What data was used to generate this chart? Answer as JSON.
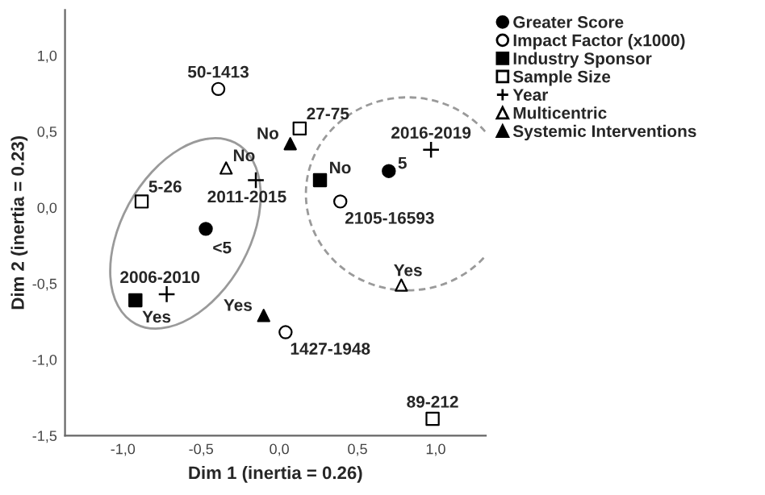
{
  "chart_data": {
    "type": "scatter",
    "xlabel": "Dim 1 (inertia = 0.26)",
    "ylabel": "Dim 2 (inertia = 0.23)",
    "xlim": [
      -1.37,
      1.32
    ],
    "ylim": [
      -1.5,
      1.3
    ],
    "xticks": [
      {
        "value": -1.0,
        "label": "-1,0"
      },
      {
        "value": -0.5,
        "label": "-0,5"
      },
      {
        "value": 0.0,
        "label": "0,0"
      },
      {
        "value": 0.5,
        "label": "0,5"
      },
      {
        "value": 1.0,
        "label": "1,0"
      }
    ],
    "yticks": [
      {
        "value": -1.5,
        "label": "-1,5"
      },
      {
        "value": -1.0,
        "label": "-1,0"
      },
      {
        "value": -0.5,
        "label": "-0,5"
      },
      {
        "value": 0.0,
        "label": "0,0"
      },
      {
        "value": 0.5,
        "label": "0,5"
      },
      {
        "value": 1.0,
        "label": "1,0"
      }
    ],
    "grid": false,
    "legend": "top right",
    "series": [
      {
        "name": "Greater Score",
        "marker": "circle",
        "color": "#000000",
        "x": [
          -0.47,
          0.7
        ],
        "values": [
          -0.14,
          0.24
        ]
      },
      {
        "name": "Impact Factor (x1000)",
        "marker": "circle",
        "color": "#ffffff",
        "x": [
          -0.39,
          0.39,
          0.04
        ],
        "values": [
          0.78,
          0.04,
          -0.82
        ]
      },
      {
        "name": "Industry Sponsor",
        "marker": "square",
        "color": "#000000",
        "x": [
          0.26,
          -0.92
        ],
        "values": [
          0.18,
          -0.61
        ]
      },
      {
        "name": "Sample Size",
        "marker": "square",
        "color": "#ffffff",
        "x": [
          -0.88,
          0.13,
          0.98
        ],
        "values": [
          0.04,
          0.52,
          -1.39
        ]
      },
      {
        "name": "Year",
        "marker": "cross",
        "color": "#000000",
        "x": [
          -0.15,
          0.97,
          -0.72
        ],
        "values": [
          0.18,
          0.38,
          -0.57
        ]
      },
      {
        "name": "Multicentric",
        "marker": "triangle",
        "color": "#ffffff",
        "x": [
          -0.34,
          0.78
        ],
        "values": [
          0.26,
          -0.51
        ]
      },
      {
        "name": "Systemic Interventions",
        "marker": "triangle",
        "color": "#000000",
        "x": [
          0.07,
          -0.1
        ],
        "values": [
          0.42,
          -0.71
        ]
      }
    ],
    "annotations": [
      {
        "text": "<5",
        "x": -0.47,
        "y": -0.14
      },
      {
        "text": "5",
        "x": 0.7,
        "y": 0.24
      },
      {
        "text": "50-1413",
        "x": -0.39,
        "y": 0.78
      },
      {
        "text": "2105-16593",
        "x": 0.39,
        "y": 0.04
      },
      {
        "text": "1427-1948",
        "x": 0.04,
        "y": -0.82
      },
      {
        "text": "No",
        "x": 0.26,
        "y": 0.18
      },
      {
        "text": "Yes",
        "x": -0.92,
        "y": -0.61
      },
      {
        "text": "5-26",
        "x": -0.88,
        "y": 0.04
      },
      {
        "text": "27-75",
        "x": 0.13,
        "y": 0.52
      },
      {
        "text": "89-212",
        "x": 0.98,
        "y": -1.39
      },
      {
        "text": "2011-2015",
        "x": -0.15,
        "y": 0.18
      },
      {
        "text": "2016-2019",
        "x": 0.97,
        "y": 0.38
      },
      {
        "text": "2006-2010",
        "x": -0.72,
        "y": -0.57
      },
      {
        "text": "No",
        "x": -0.34,
        "y": 0.26
      },
      {
        "text": "Yes",
        "x": 0.78,
        "y": -0.51
      },
      {
        "text": "No",
        "x": 0.07,
        "y": 0.42
      },
      {
        "text": "Yes",
        "x": -0.1,
        "y": -0.71
      }
    ]
  }
}
